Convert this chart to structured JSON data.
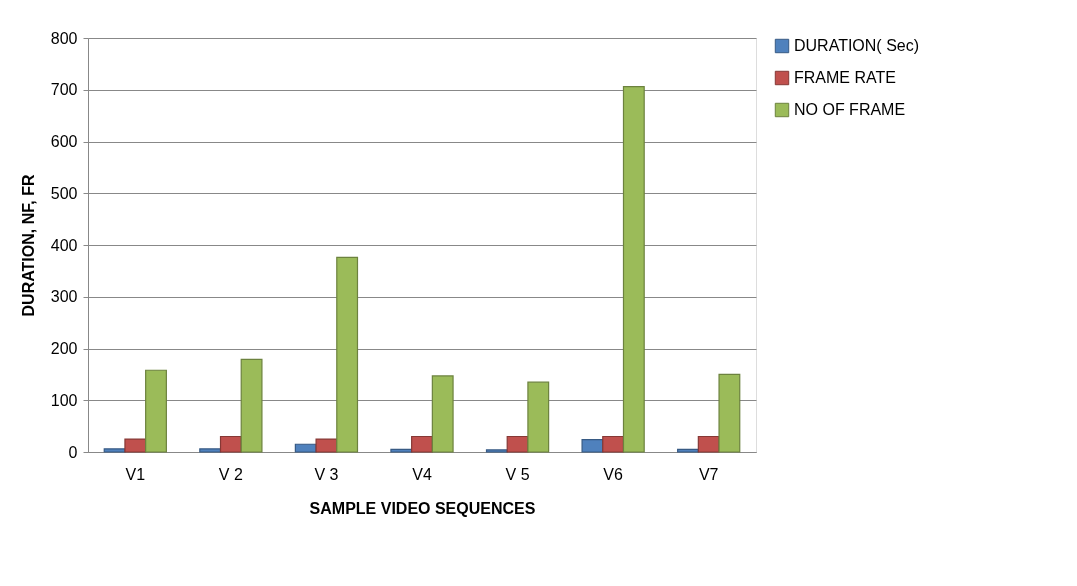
{
  "chart_data": {
    "type": "bar",
    "xlabel": "SAMPLE  VIDEO SEQUENCES",
    "ylabel": "DURATION, NF, FR",
    "categories": [
      "V1",
      "V 2",
      "V 3",
      "V4",
      "V 5",
      "V6",
      "V7"
    ],
    "series": [
      {
        "name": "DURATION( Sec)",
        "color": "#4f81bd",
        "values": [
          6,
          6,
          15,
          5,
          4,
          24,
          5
        ]
      },
      {
        "name": "FRAME RATE",
        "color": "#c0504d",
        "values": [
          25,
          30,
          25,
          30,
          30,
          30,
          30
        ]
      },
      {
        "name": "NO OF FRAME",
        "color": "#9bbb59",
        "values": [
          158,
          179,
          376,
          147,
          135,
          706,
          150
        ]
      }
    ],
    "ylim": [
      0,
      800
    ],
    "yticks": [
      0,
      100,
      200,
      300,
      400,
      500,
      600,
      700,
      800
    ],
    "grid": "y",
    "legend": "right"
  }
}
